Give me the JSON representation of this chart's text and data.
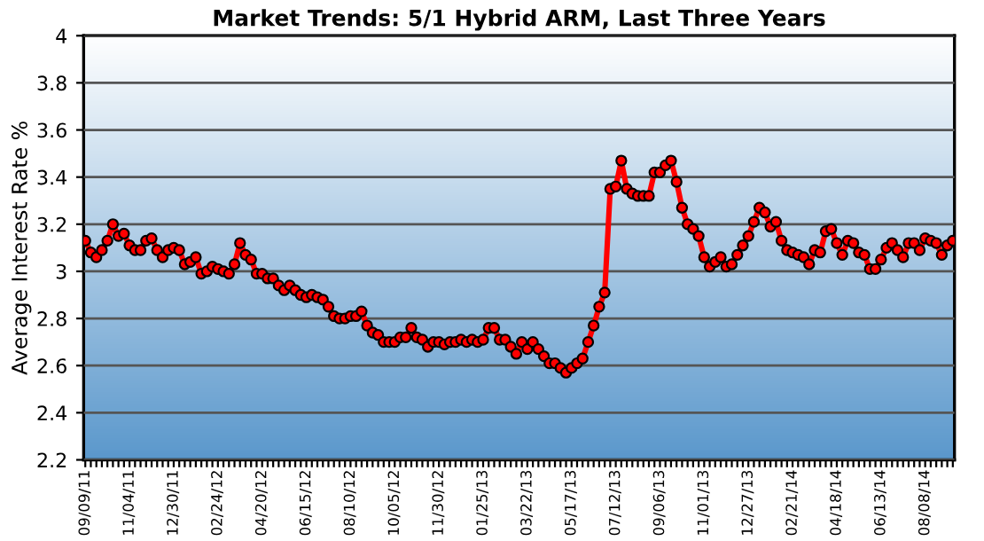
{
  "chart_data": {
    "type": "line",
    "title": "Market Trends: 5/1 Hybrid ARM, Last Three Years",
    "ylabel": "Average Interest Rate %",
    "categories": [
      "09/09/11",
      null,
      null,
      null,
      null,
      null,
      null,
      null,
      "11/04/11",
      null,
      null,
      null,
      null,
      null,
      null,
      null,
      "12/30/11",
      null,
      null,
      null,
      null,
      null,
      null,
      null,
      "02/24/12",
      null,
      null,
      null,
      null,
      null,
      null,
      null,
      "04/20/12",
      null,
      null,
      null,
      null,
      null,
      null,
      null,
      "06/15/12",
      null,
      null,
      null,
      null,
      null,
      null,
      null,
      "08/10/12",
      null,
      null,
      null,
      null,
      null,
      null,
      null,
      "10/05/12",
      null,
      null,
      null,
      null,
      null,
      null,
      null,
      "11/30/12",
      null,
      null,
      null,
      null,
      null,
      null,
      null,
      "01/25/13",
      null,
      null,
      null,
      null,
      null,
      null,
      null,
      "03/22/13",
      null,
      null,
      null,
      null,
      null,
      null,
      null,
      "05/17/13",
      null,
      null,
      null,
      null,
      null,
      null,
      null,
      "07/12/13",
      null,
      null,
      null,
      null,
      null,
      null,
      null,
      "09/06/13",
      null,
      null,
      null,
      null,
      null,
      null,
      null,
      "11/01/13",
      null,
      null,
      null,
      null,
      null,
      null,
      null,
      "12/27/13",
      null,
      null,
      null,
      null,
      null,
      null,
      null,
      "02/21/14",
      null,
      null,
      null,
      null,
      null,
      null,
      null,
      "04/18/14",
      null,
      null,
      null,
      null,
      null,
      null,
      null,
      "06/13/14",
      null,
      null,
      null,
      null,
      null,
      null,
      null,
      "08/08/14",
      null,
      null,
      null,
      null,
      null
    ],
    "series": [
      {
        "color": "#ff0000",
        "values": [
          3.13,
          3.08,
          3.06,
          3.09,
          3.13,
          3.2,
          3.15,
          3.16,
          3.11,
          3.09,
          3.09,
          3.13,
          3.14,
          3.09,
          3.06,
          3.09,
          3.1,
          3.09,
          3.03,
          3.04,
          3.06,
          2.99,
          3.0,
          3.02,
          3.01,
          3.0,
          2.99,
          3.03,
          3.12,
          3.07,
          3.05,
          2.99,
          2.99,
          2.97,
          2.97,
          2.94,
          2.92,
          2.94,
          2.92,
          2.9,
          2.89,
          2.9,
          2.89,
          2.88,
          2.85,
          2.81,
          2.8,
          2.8,
          2.81,
          2.81,
          2.83,
          2.77,
          2.74,
          2.73,
          2.7,
          2.7,
          2.7,
          2.72,
          2.72,
          2.76,
          2.72,
          2.71,
          2.68,
          2.7,
          2.7,
          2.69,
          2.7,
          2.7,
          2.71,
          2.7,
          2.71,
          2.7,
          2.71,
          2.76,
          2.76,
          2.71,
          2.71,
          2.68,
          2.65,
          2.7,
          2.67,
          2.7,
          2.67,
          2.64,
          2.61,
          2.61,
          2.59,
          2.57,
          2.59,
          2.61,
          2.63,
          2.7,
          2.77,
          2.85,
          2.91,
          3.35,
          3.36,
          3.47,
          3.35,
          3.33,
          3.32,
          3.32,
          3.32,
          3.42,
          3.42,
          3.45,
          3.47,
          3.38,
          3.27,
          3.2,
          3.18,
          3.15,
          3.06,
          3.02,
          3.04,
          3.06,
          3.02,
          3.03,
          3.07,
          3.11,
          3.15,
          3.21,
          3.27,
          3.25,
          3.19,
          3.21,
          3.13,
          3.09,
          3.08,
          3.07,
          3.06,
          3.03,
          3.09,
          3.08,
          3.17,
          3.18,
          3.12,
          3.07,
          3.13,
          3.12,
          3.08,
          3.07,
          3.01,
          3.01,
          3.05,
          3.1,
          3.12,
          3.09,
          3.06,
          3.12,
          3.12,
          3.09,
          3.14,
          3.13,
          3.12,
          3.07,
          3.11,
          3.13
        ]
      }
    ],
    "ylim": [
      2.2,
      4
    ],
    "yticks": [
      2.2,
      2.4,
      2.6,
      2.8,
      3,
      3.2,
      3.4,
      3.6,
      3.8,
      4
    ],
    "grid": "y",
    "marker": "circle",
    "line_style": "solid"
  }
}
